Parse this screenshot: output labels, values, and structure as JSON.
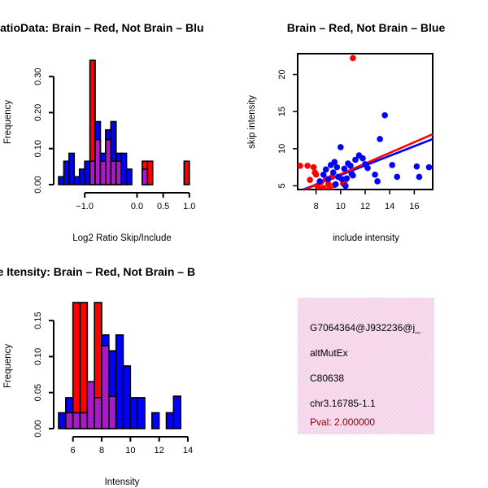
{
  "colors": {
    "brain": "#ff0000",
    "not_brain": "#0000ff",
    "overlap": "#a020f0",
    "info_bg": "#f7dcef",
    "pval": "#8b0000",
    "axis": "#000000"
  },
  "info_box": {
    "lines": [
      "G7064364@J932236@j_",
      "altMutEx",
      "C80638",
      "chr3.16785-1.1"
    ],
    "pval": "Pval: 2.000000"
  },
  "chart_data": [
    {
      "type": "bar",
      "subtype": "overlaid-histogram",
      "title": "RatioData: Brain – Red, Not Brain – Blu",
      "xlabel": "Log2 Ratio Skip/Include",
      "ylabel": "Frequency",
      "xlim": [
        -1.5,
        1.05
      ],
      "ylim": [
        0,
        0.35
      ],
      "xticks": [
        -1.0,
        0.0,
        0.5,
        1.0
      ],
      "xtick_labels": [
        "−1.0",
        "0.0",
        "0.5",
        "1.0"
      ],
      "yticks": [
        0.0,
        0.1,
        0.2,
        0.3
      ],
      "ytick_labels": [
        "0.00",
        "0.10",
        "0.20",
        "0.30"
      ],
      "bin_edges": [
        -1.5,
        -1.4,
        -1.3,
        -1.2,
        -1.1,
        -1.0,
        -0.9,
        -0.8,
        -0.7,
        -0.6,
        -0.5,
        -0.4,
        -0.3,
        -0.2,
        -0.1,
        0.0,
        0.1,
        0.2,
        0.3,
        0.4,
        0.5,
        0.6,
        0.7,
        0.8,
        0.9,
        1.0
      ],
      "series": [
        {
          "name": "Brain",
          "color": "red",
          "values": [
            0,
            0,
            0,
            0,
            0,
            0,
            0.345,
            0.125,
            0.065,
            0.125,
            0.065,
            0.065,
            0,
            0,
            0,
            0,
            0.065,
            0.065,
            0,
            0,
            0,
            0,
            0,
            0,
            0.065
          ]
        },
        {
          "name": "Not Brain",
          "color": "blue",
          "values": [
            0.022,
            0.065,
            0.087,
            0.022,
            0.043,
            0.065,
            0.065,
            0.175,
            0.087,
            0.152,
            0.175,
            0.087,
            0.087,
            0.043,
            0,
            0,
            0.043,
            0,
            0,
            0,
            0,
            0,
            0,
            0,
            0
          ]
        }
      ]
    },
    {
      "type": "scatter",
      "title": "Brain – Red, Not Brain – Blue",
      "xlabel": "include intensity",
      "ylabel": "skip intensity",
      "xlim": [
        6.5,
        17.5
      ],
      "ylim": [
        4.5,
        22.8
      ],
      "xticks": [
        8,
        10,
        12,
        14,
        16
      ],
      "xtick_labels": [
        "8",
        "10",
        "12",
        "14",
        "16"
      ],
      "yticks": [
        5,
        10,
        15,
        20
      ],
      "ytick_labels": [
        "5",
        "10",
        "15",
        "20"
      ],
      "series": [
        {
          "name": "Brain",
          "color": "red",
          "x": [
            6.7,
            7.3,
            7.5,
            7.8,
            8.0,
            8.1,
            8.2,
            8.4,
            8.6,
            8.8,
            9.0,
            9.1,
            9.3,
            9.5,
            10.2,
            10.4,
            11.0,
            7.9
          ],
          "y": [
            7.7,
            7.7,
            5.8,
            7.5,
            6.5,
            5.0,
            4.8,
            5.5,
            4.7,
            5.9,
            5.2,
            4.6,
            6.2,
            5.1,
            5.3,
            5.8,
            22.2,
            6.8
          ]
        },
        {
          "name": "Not Brain",
          "color": "blue",
          "x": [
            8.3,
            8.6,
            8.8,
            9.0,
            9.2,
            9.4,
            9.5,
            9.7,
            9.8,
            10.0,
            10.1,
            10.3,
            10.5,
            10.6,
            10.8,
            11.0,
            11.2,
            11.5,
            11.8,
            12.0,
            12.2,
            13.0,
            13.2,
            13.6,
            14.2,
            14.6,
            16.2,
            16.4,
            17.2,
            9.6,
            10.4,
            10.9,
            12.8
          ],
          "y": [
            5.6,
            6.5,
            7.2,
            5.9,
            7.8,
            6.8,
            8.2,
            7.5,
            6.2,
            10.2,
            5.9,
            7.3,
            6.0,
            8.0,
            7.7,
            6.4,
            8.5,
            9.1,
            8.7,
            7.9,
            7.4,
            5.6,
            11.3,
            14.5,
            7.8,
            6.2,
            7.6,
            6.2,
            7.5,
            5.2,
            5.0,
            6.6,
            6.5
          ]
        }
      ],
      "fit_lines": [
        {
          "name": "Brain",
          "color": "red",
          "x": [
            6.5,
            17.5
          ],
          "y": [
            4.05,
            11.95
          ]
        },
        {
          "name": "Not Brain",
          "color": "blue",
          "x": [
            6.5,
            17.5
          ],
          "y": [
            4.2,
            11.3
          ]
        }
      ]
    },
    {
      "type": "bar",
      "subtype": "overlaid-histogram",
      "title": "ne Itensity: Brain – Red, Not Brain – B",
      "xlabel": "Intensity",
      "ylabel": "Frequency",
      "xlim": [
        5.0,
        14.0
      ],
      "ylim": [
        0,
        0.175
      ],
      "xticks": [
        6,
        8,
        10,
        12,
        14
      ],
      "xtick_labels": [
        "6",
        "8",
        "10",
        "12",
        "14"
      ],
      "yticks": [
        0.0,
        0.05,
        0.1,
        0.15
      ],
      "ytick_labels": [
        "0.00",
        "0.05",
        "0.10",
        "0.15"
      ],
      "bin_edges": [
        5.0,
        5.5,
        6.0,
        6.5,
        7.0,
        7.5,
        8.0,
        8.5,
        9.0,
        9.5,
        10.0,
        10.5,
        11.0,
        11.5,
        12.0,
        12.5,
        13.0,
        13.5,
        14.0
      ],
      "series": [
        {
          "name": "Brain",
          "color": "red",
          "values": [
            0,
            0.022,
            0.175,
            0.175,
            0.065,
            0.175,
            0.115,
            0.045,
            0,
            0,
            0,
            0,
            0,
            0,
            0,
            0,
            0,
            0
          ]
        },
        {
          "name": "Not Brain",
          "color": "blue",
          "values": [
            0.022,
            0.043,
            0.022,
            0.022,
            0.065,
            0.043,
            0.13,
            0.108,
            0.13,
            0.087,
            0.043,
            0.043,
            0,
            0.022,
            0,
            0.022,
            0.045,
            0
          ]
        }
      ]
    }
  ]
}
